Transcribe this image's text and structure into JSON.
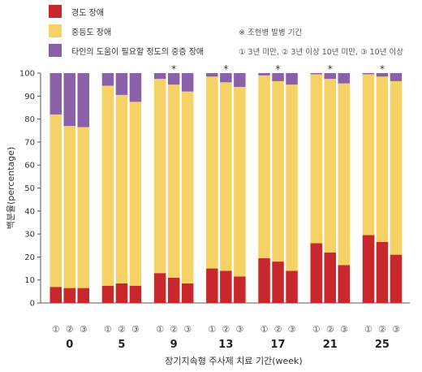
{
  "chart_data": {
    "type": "bar",
    "stacked": true,
    "legend": {
      "placement": "top-left",
      "items": [
        {
          "name": "경도 장애",
          "color": "#c8272b"
        },
        {
          "name": "중등도 장애",
          "color": "#f6d165"
        },
        {
          "name": "타인의 도움이 필요할 정도의 중증 장애",
          "color": "#8a60a8"
        }
      ]
    },
    "notes": {
      "star_note": "※ 조현병 발병 기간",
      "period_note": "① 3년 미만, ② 3년 이상 10년 미만, ③ 10년 이상"
    },
    "ylabel": "백분율(percentage)",
    "xlabel": "장기지속형 주사제 치료 기간(week)",
    "ylim": [
      0,
      100
    ],
    "yticks": [
      0,
      10,
      20,
      30,
      40,
      50,
      60,
      70,
      80,
      90,
      100
    ],
    "grid": false,
    "subcategory_labels": [
      "①",
      "②",
      "③"
    ],
    "groups": [
      {
        "week": "0",
        "star": false,
        "mild": [
          7,
          6.5,
          6.5
        ],
        "moderate": [
          75,
          70.5,
          70
        ],
        "severe": [
          18,
          23,
          23.5
        ]
      },
      {
        "week": "5",
        "star": false,
        "mild": [
          7.5,
          8.5,
          7.5
        ],
        "moderate": [
          87,
          82,
          80
        ],
        "severe": [
          5.5,
          9.5,
          12.5
        ]
      },
      {
        "week": "9",
        "star": true,
        "mild": [
          13,
          11,
          8.5
        ],
        "moderate": [
          84.5,
          84,
          83.5
        ],
        "severe": [
          2.5,
          5,
          8
        ]
      },
      {
        "week": "13",
        "star": true,
        "mild": [
          15,
          14,
          11.5
        ],
        "moderate": [
          83.5,
          82,
          82.5
        ],
        "severe": [
          1.5,
          4,
          6
        ]
      },
      {
        "week": "17",
        "star": true,
        "mild": [
          19.5,
          18,
          14
        ],
        "moderate": [
          79.5,
          78.5,
          81
        ],
        "severe": [
          1,
          3.5,
          5
        ]
      },
      {
        "week": "21",
        "star": true,
        "mild": [
          26,
          22,
          16.5
        ],
        "moderate": [
          73.5,
          75.5,
          79
        ],
        "severe": [
          0.5,
          2.5,
          4.5
        ]
      },
      {
        "week": "25",
        "star": true,
        "mild": [
          29.5,
          26.5,
          21
        ],
        "moderate": [
          70,
          72,
          75.5
        ],
        "severe": [
          0.5,
          1.5,
          3.5
        ]
      }
    ]
  }
}
